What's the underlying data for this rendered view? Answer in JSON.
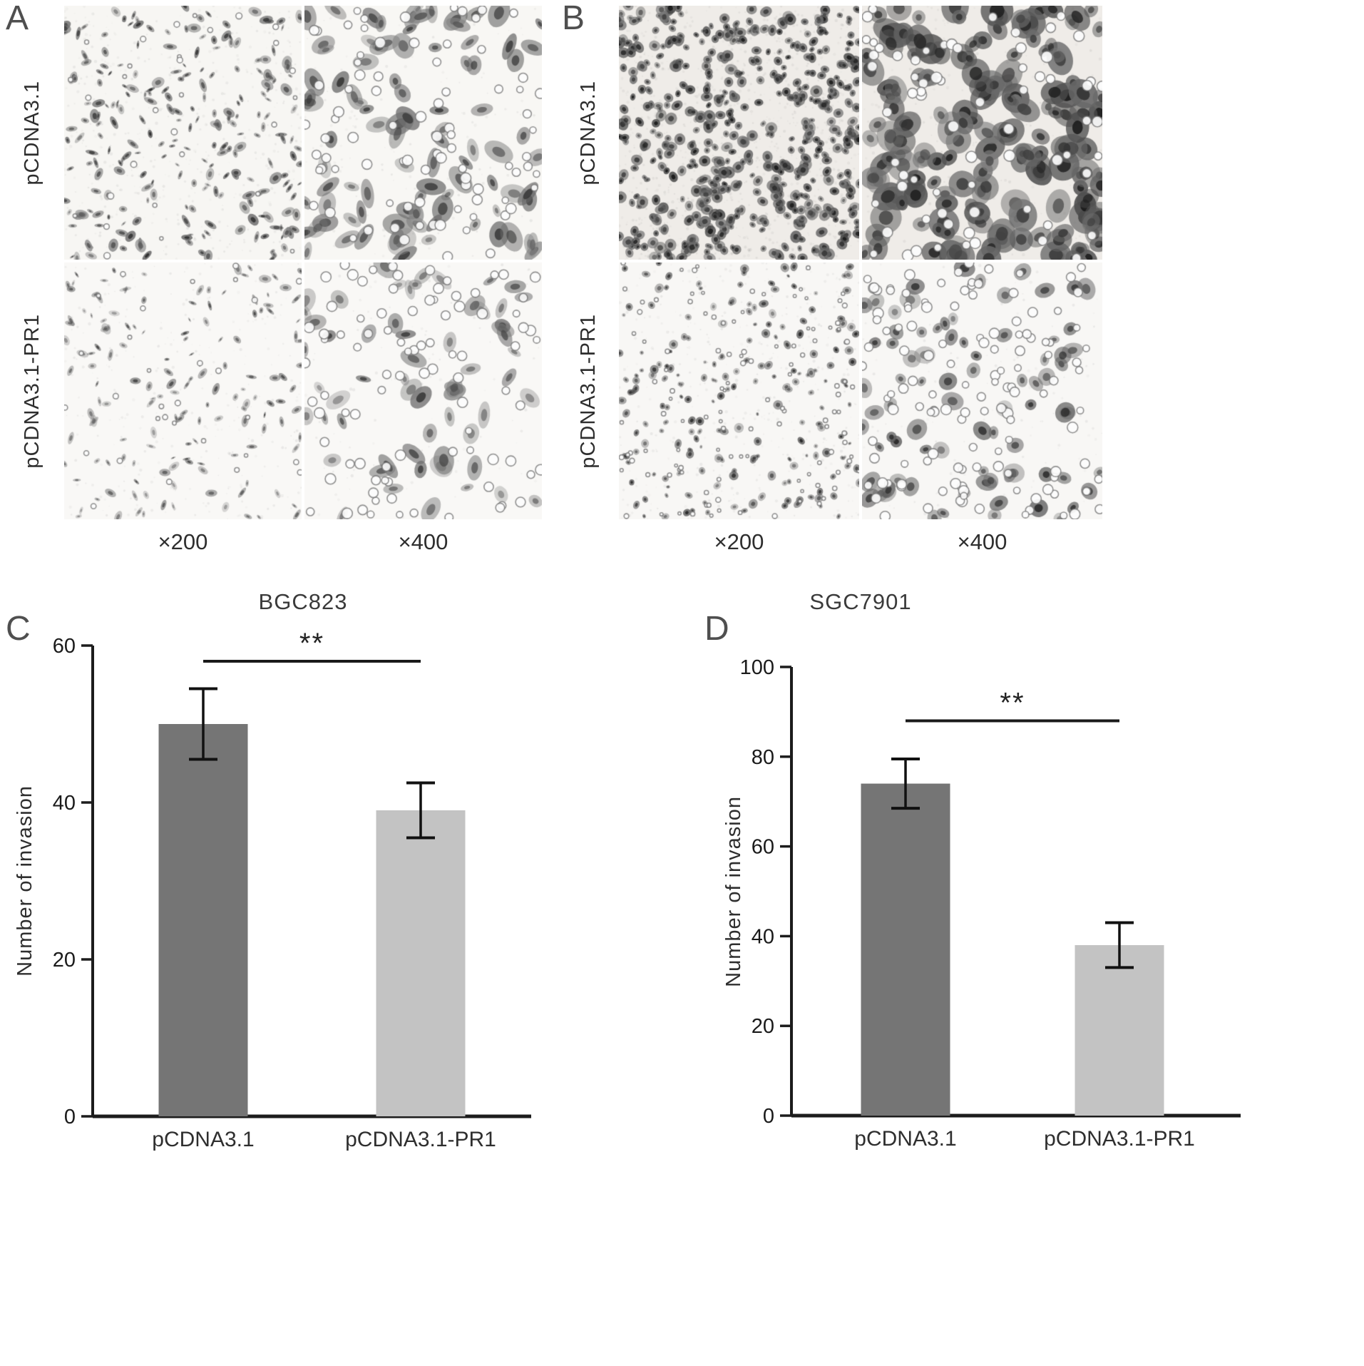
{
  "panels": {
    "A": {
      "letter": "A",
      "row_labels": [
        "pCDNA3.1",
        "pCDNA3.1-PR1"
      ],
      "mag_labels": [
        "×200",
        "×400"
      ]
    },
    "B": {
      "letter": "B",
      "row_labels": [
        "pCDNA3.1",
        "pCDNA3.1-PR1"
      ],
      "mag_labels": [
        "×200",
        "×400"
      ]
    }
  },
  "chart_data": [
    {
      "panel": "C",
      "letter": "C",
      "type": "bar",
      "title": "BGC823",
      "categories": [
        "pCDNA3.1",
        "pCDNA3.1-PR1"
      ],
      "values": [
        50,
        39
      ],
      "errors": [
        4.5,
        3.5
      ],
      "ylabel": "Number of invasion",
      "ylim": [
        0,
        60
      ],
      "yticks": [
        0,
        20,
        40,
        60
      ],
      "bar_colors": [
        "#757575",
        "#c3c3c3"
      ],
      "significance": {
        "label": "**",
        "between": [
          0,
          1
        ],
        "y": 58
      },
      "legend": "none",
      "grid": false
    },
    {
      "panel": "D",
      "letter": "D",
      "type": "bar",
      "title": "SGC7901",
      "categories": [
        "pCDNA3.1",
        "pCDNA3.1-PR1"
      ],
      "values": [
        74,
        38
      ],
      "errors": [
        5.5,
        5
      ],
      "ylabel": "Number of invasion",
      "ylim": [
        0,
        100
      ],
      "yticks": [
        0,
        20,
        40,
        60,
        80,
        100
      ],
      "bar_colors": [
        "#757575",
        "#c3c3c3"
      ],
      "significance": {
        "label": "**",
        "between": [
          0,
          1
        ],
        "y": 88
      },
      "legend": "none",
      "grid": false
    }
  ],
  "colors": {
    "axis": "#1c1c1c",
    "text": "#2e2e2e"
  }
}
